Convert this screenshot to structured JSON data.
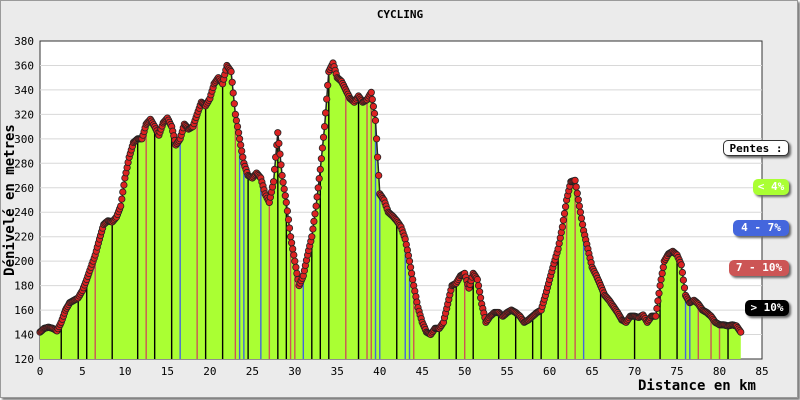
{
  "chart_data": {
    "type": "area",
    "title": "CYCLING",
    "xlabel": "Distance en km",
    "ylabel": "Dénivelé en metres",
    "xlim": [
      0,
      85
    ],
    "ylim": [
      120,
      380
    ],
    "x_ticks": [
      0,
      5,
      10,
      15,
      20,
      25,
      30,
      35,
      40,
      45,
      50,
      55,
      60,
      65,
      70,
      75,
      80,
      85
    ],
    "y_ticks": [
      120,
      140,
      160,
      180,
      200,
      220,
      240,
      260,
      280,
      300,
      320,
      340,
      360,
      380
    ],
    "grid": "horizontal",
    "legend_position": "right",
    "legend": {
      "title": "Pentes :",
      "entries": [
        {
          "label": "< 4%",
          "color": "#aaff33"
        },
        {
          "label": "4 - 7%",
          "color": "#4466dd"
        },
        {
          "label": "7 - 10%",
          "color": "#cc5555"
        },
        {
          "label": "> 10%",
          "color": "#000000"
        }
      ]
    },
    "colors": {
      "fill": "#aaff33",
      "marker": "#dd2222",
      "gradient_4_7": "#4466dd",
      "gradient_7_10": "#cc5555",
      "gradient_gt_10": "#000000"
    },
    "profile": {
      "x": [
        0,
        0.5,
        1,
        1.5,
        2,
        2.5,
        3,
        3.5,
        4,
        4.5,
        5,
        5.5,
        6,
        6.5,
        7,
        7.5,
        8,
        8.5,
        9,
        9.5,
        10,
        10.5,
        11,
        11.5,
        12,
        12.5,
        13,
        13.5,
        14,
        14.5,
        15,
        15.5,
        16,
        16.5,
        17,
        17.5,
        18,
        18.5,
        19,
        19.5,
        20,
        20.5,
        21,
        21.5,
        22,
        22.5,
        23,
        23.5,
        24,
        24.5,
        25,
        25.5,
        26,
        26.5,
        27,
        27.5,
        28,
        28.5,
        29,
        29.5,
        30,
        30.5,
        31,
        31.5,
        32,
        32.5,
        33,
        33.5,
        34,
        34.5,
        35,
        35.5,
        36,
        36.5,
        37,
        37.5,
        38,
        38.5,
        39,
        39.5,
        40,
        40.5,
        41,
        41.5,
        42,
        42.5,
        43,
        43.5,
        44,
        44.5,
        45,
        45.5,
        46,
        46.5,
        47,
        47.5,
        48,
        48.5,
        49,
        49.5,
        50,
        50.5,
        51,
        51.5,
        52,
        52.5,
        53,
        53.5,
        54,
        54.5,
        55,
        55.5,
        56,
        56.5,
        57,
        57.5,
        58,
        58.5,
        59,
        59.5,
        60,
        60.5,
        61,
        61.5,
        62,
        62.5,
        63,
        63.5,
        64,
        64.5,
        65,
        65.5,
        66,
        66.5,
        67,
        67.5,
        68,
        68.5,
        69,
        69.5,
        70,
        70.5,
        71,
        71.5,
        72,
        72.5,
        73,
        73.5,
        74,
        74.5,
        75,
        75.5,
        76,
        76.5,
        77,
        77.5,
        78,
        78.5,
        79,
        79.5,
        80,
        80.5,
        81,
        81.5,
        82,
        82.5
      ],
      "y": [
        142,
        145,
        146,
        145,
        143,
        150,
        160,
        166,
        168,
        170,
        176,
        185,
        195,
        205,
        218,
        230,
        233,
        232,
        236,
        245,
        268,
        285,
        297,
        300,
        300,
        312,
        316,
        310,
        303,
        313,
        317,
        310,
        295,
        300,
        312,
        308,
        310,
        320,
        330,
        327,
        333,
        345,
        350,
        345,
        360,
        355,
        320,
        300,
        280,
        270,
        268,
        272,
        268,
        255,
        248,
        265,
        305,
        270,
        248,
        220,
        200,
        180,
        188,
        205,
        220,
        245,
        275,
        310,
        355,
        362,
        350,
        347,
        340,
        333,
        330,
        335,
        330,
        332,
        338,
        315,
        255,
        250,
        240,
        237,
        233,
        228,
        218,
        200,
        180,
        162,
        150,
        142,
        140,
        145,
        145,
        150,
        165,
        180,
        182,
        188,
        190,
        178,
        190,
        185,
        165,
        150,
        155,
        158,
        158,
        155,
        158,
        160,
        158,
        155,
        150,
        152,
        155,
        158,
        160,
        172,
        185,
        198,
        210,
        228,
        250,
        265,
        266,
        245,
        225,
        210,
        195,
        188,
        180,
        172,
        168,
        163,
        158,
        152,
        150,
        155,
        155,
        154,
        156,
        150,
        155,
        155,
        180,
        200,
        206,
        208,
        205,
        197,
        172,
        166,
        168,
        165,
        160,
        158,
        155,
        150,
        148,
        148,
        147,
        148,
        147,
        142
      ]
    },
    "gradient_bands": [
      {
        "x": 2.5,
        "class": "gt_10"
      },
      {
        "x": 4.5,
        "class": "gt_10"
      },
      {
        "x": 5.5,
        "class": "gt_10"
      },
      {
        "x": 6.5,
        "class": "7_10"
      },
      {
        "x": 8.5,
        "class": "gt_10"
      },
      {
        "x": 11.5,
        "class": "gt_10"
      },
      {
        "x": 12.5,
        "class": "7_10"
      },
      {
        "x": 13.5,
        "class": "gt_10"
      },
      {
        "x": 15.5,
        "class": "gt_10"
      },
      {
        "x": 16.5,
        "class": "4_7"
      },
      {
        "x": 18.5,
        "class": "7_10"
      },
      {
        "x": 19.5,
        "class": "gt_10"
      },
      {
        "x": 21.5,
        "class": "gt_10"
      },
      {
        "x": 23,
        "class": "7_10"
      },
      {
        "x": 23.5,
        "class": "4_7"
      },
      {
        "x": 24,
        "class": "4_7"
      },
      {
        "x": 24.5,
        "class": "gt_10"
      },
      {
        "x": 26,
        "class": "4_7"
      },
      {
        "x": 27,
        "class": "7_10"
      },
      {
        "x": 28,
        "class": "gt_10"
      },
      {
        "x": 29,
        "class": "gt_10"
      },
      {
        "x": 29.5,
        "class": "7_10"
      },
      {
        "x": 30,
        "class": "7_10"
      },
      {
        "x": 31,
        "class": "4_7"
      },
      {
        "x": 32,
        "class": "gt_10"
      },
      {
        "x": 33,
        "class": "gt_10"
      },
      {
        "x": 34,
        "class": "gt_10"
      },
      {
        "x": 36,
        "class": "7_10"
      },
      {
        "x": 37.5,
        "class": "gt_10"
      },
      {
        "x": 38.5,
        "class": "7_10"
      },
      {
        "x": 39,
        "class": "7_10"
      },
      {
        "x": 39.5,
        "class": "4_7"
      },
      {
        "x": 40,
        "class": "4_7"
      },
      {
        "x": 42,
        "class": "gt_10"
      },
      {
        "x": 43,
        "class": "4_7"
      },
      {
        "x": 43.5,
        "class": "4_7"
      },
      {
        "x": 44,
        "class": "7_10"
      },
      {
        "x": 47,
        "class": "gt_10"
      },
      {
        "x": 49,
        "class": "gt_10"
      },
      {
        "x": 50,
        "class": "7_10"
      },
      {
        "x": 51,
        "class": "gt_10"
      },
      {
        "x": 54,
        "class": "gt_10"
      },
      {
        "x": 56,
        "class": "gt_10"
      },
      {
        "x": 58,
        "class": "gt_10"
      },
      {
        "x": 59,
        "class": "gt_10"
      },
      {
        "x": 61,
        "class": "gt_10"
      },
      {
        "x": 62,
        "class": "7_10"
      },
      {
        "x": 63,
        "class": "7_10"
      },
      {
        "x": 64,
        "class": "4_7"
      },
      {
        "x": 66,
        "class": "gt_10"
      },
      {
        "x": 70,
        "class": "gt_10"
      },
      {
        "x": 73,
        "class": "gt_10"
      },
      {
        "x": 75,
        "class": "gt_10"
      },
      {
        "x": 76,
        "class": "4_7"
      },
      {
        "x": 76.5,
        "class": "4_7"
      },
      {
        "x": 77.5,
        "class": "7_10"
      },
      {
        "x": 79,
        "class": "7_10"
      },
      {
        "x": 80,
        "class": "7_10"
      },
      {
        "x": 81,
        "class": "gt_10"
      }
    ]
  }
}
